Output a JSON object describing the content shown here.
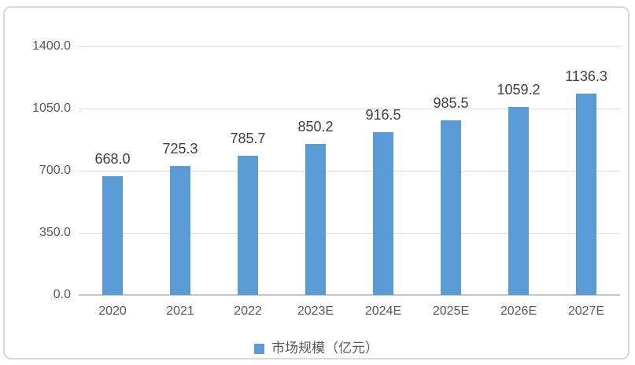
{
  "chart_data": {
    "type": "bar",
    "categories": [
      "2020",
      "2021",
      "2022",
      "2023E",
      "2024E",
      "2025E",
      "2026E",
      "2027E"
    ],
    "series": [
      {
        "name": "市场规模（亿元）",
        "values": [
          668.0,
          725.3,
          785.7,
          850.2,
          916.5,
          985.5,
          1059.2,
          1136.3
        ],
        "data_labels": [
          "668.0",
          "725.3",
          "785.7",
          "850.2",
          "916.5",
          "985.5",
          "1059.2",
          "1136.3"
        ]
      }
    ],
    "title": "",
    "xlabel": "",
    "ylabel": "",
    "ylim": [
      0,
      1400
    ],
    "ytick_values": [
      0,
      350,
      700,
      1050,
      1400
    ],
    "ytick_labels": [
      "0.0",
      "350.0",
      "700.0",
      "1050.0",
      "1400.0"
    ],
    "grid": true,
    "legend": {
      "position": "bottom",
      "label": "市场规模（亿元）"
    },
    "colors": {
      "bar": "#5b9bd5",
      "gridline": "#d9d9d9",
      "axis_line": "#c6c6c6",
      "tick_text": "#595959",
      "value_text": "#3f3f3f",
      "legend_text": "#595959",
      "frame_border": "#d9d9d9",
      "background": "#ffffff"
    }
  }
}
